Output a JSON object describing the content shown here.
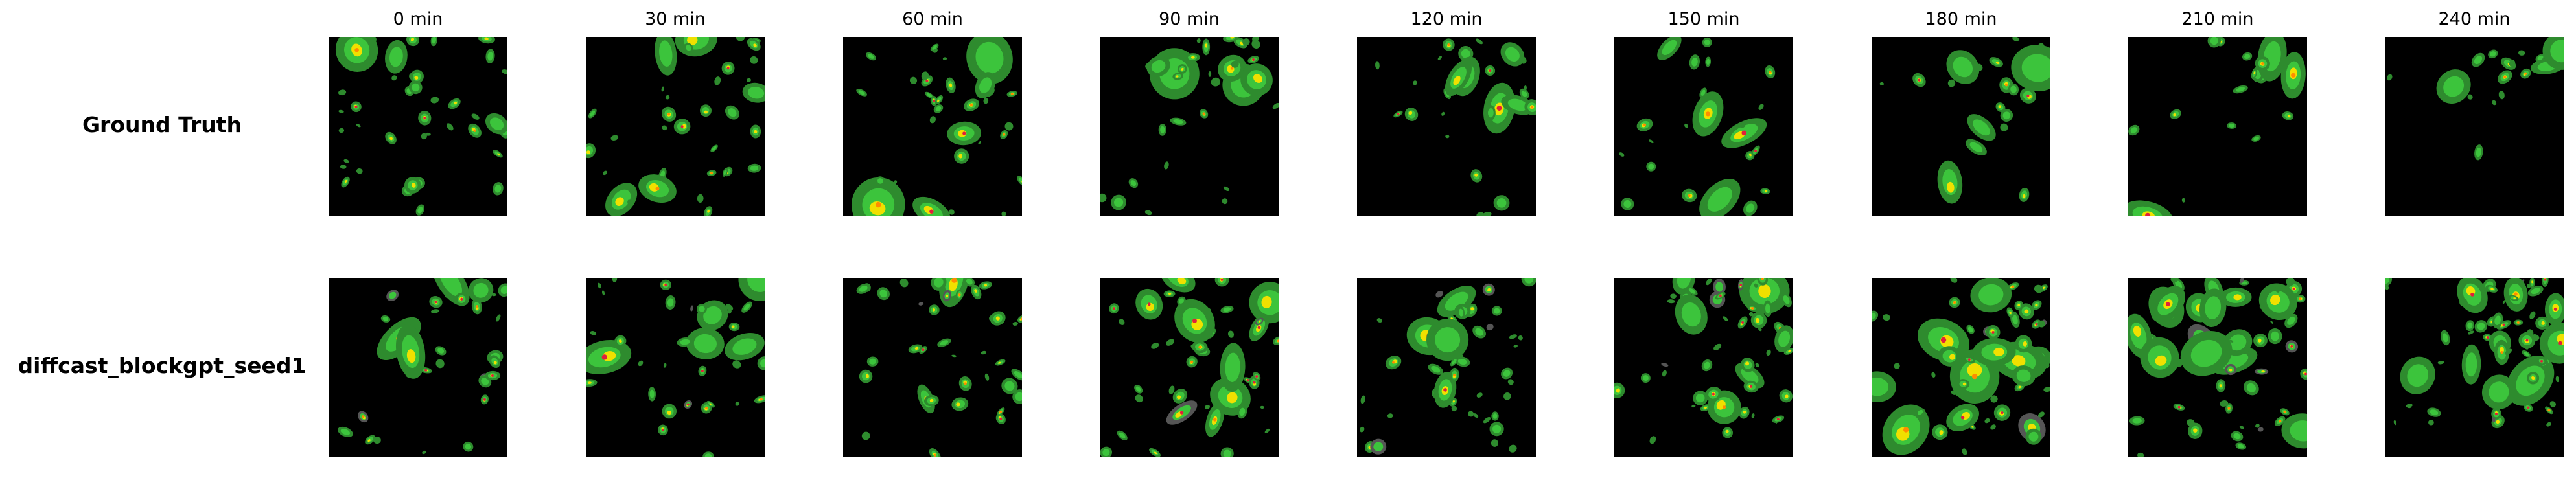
{
  "columns": [
    "0 min",
    "30 min",
    "60 min",
    "90 min",
    "120 min",
    "150 min",
    "180 min",
    "210 min",
    "240 min"
  ],
  "rows": [
    {
      "label": "Ground Truth"
    },
    {
      "label": "diffcast_blockgpt_seed1"
    }
  ],
  "colors": {
    "background": "#000000",
    "light_rain": "#2e8b2e",
    "moderate_rain": "#3cc43c",
    "heavy_rain": "#f0e000",
    "intense_rain": "#ff8c00",
    "extreme_rain": "#e0203c",
    "noise": "#555555"
  }
}
